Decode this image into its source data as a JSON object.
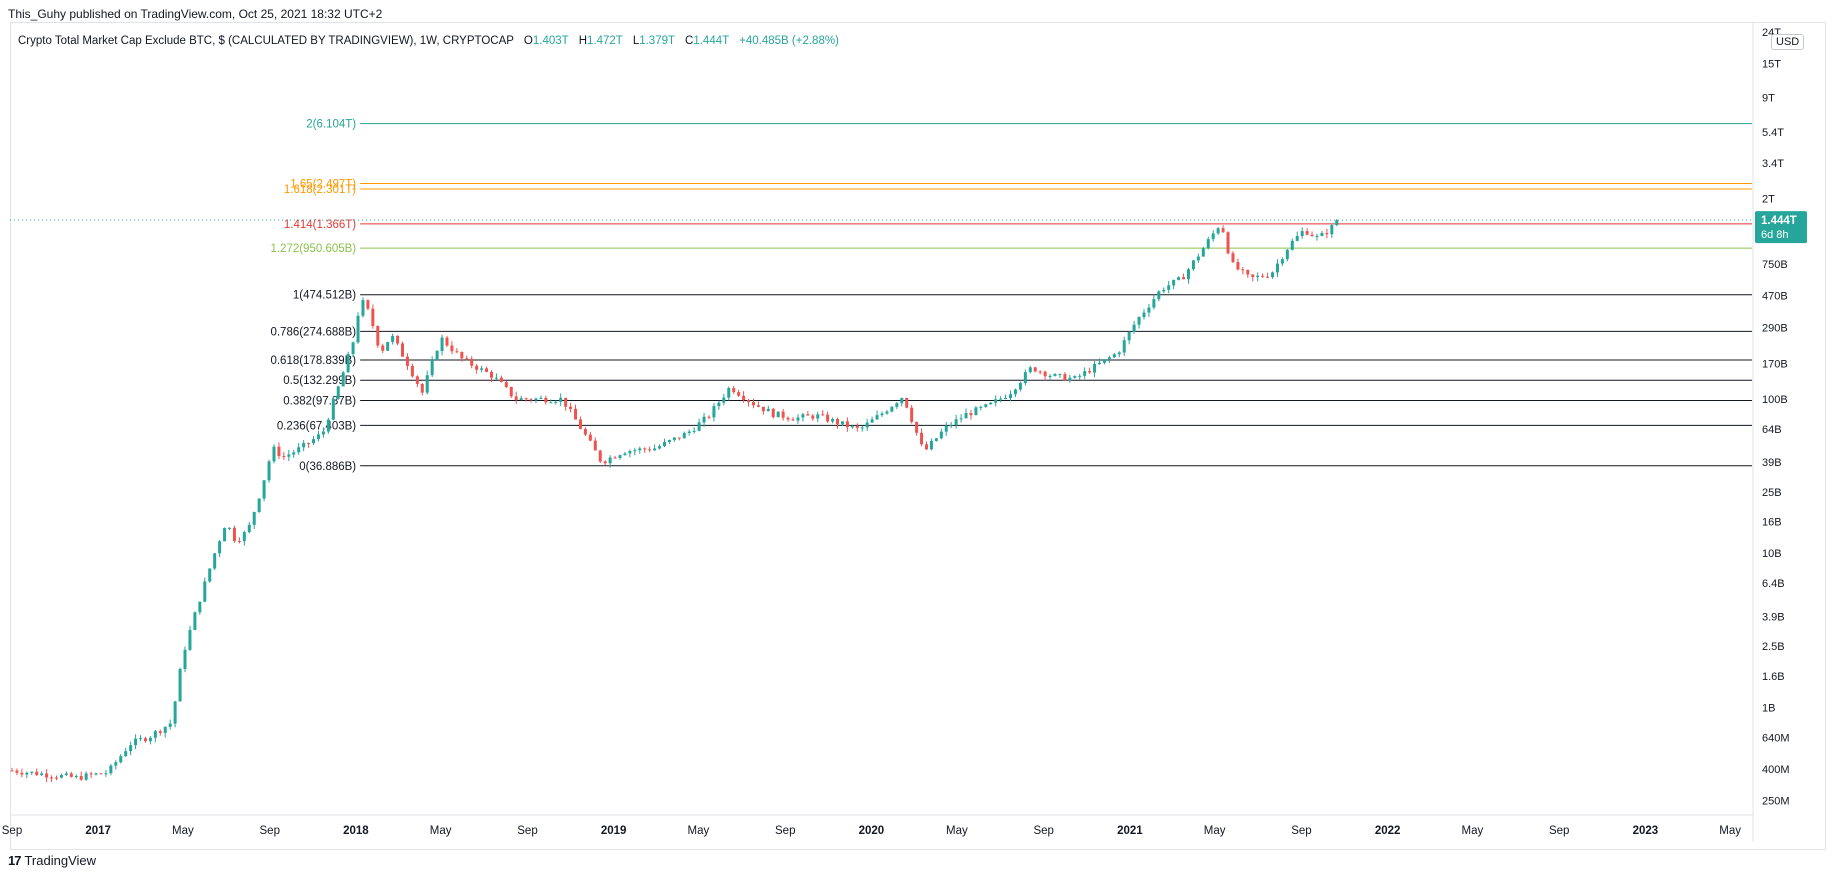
{
  "publisher_line": "This_Guhy published on TradingView.com, Oct 25, 2021 18:32 UTC+2",
  "legend": {
    "symbol": "Crypto Total Market Cap Exclude BTC, $ (CALCULATED BY TRADINGVIEW), 1W, CRYPTOCAP",
    "open_label": "O",
    "open": "1.403T",
    "high_label": "H",
    "high": "1.472T",
    "low_label": "L",
    "low": "1.379T",
    "close_label": "C",
    "close": "1.444T",
    "change": "+40.485B (+2.88%)"
  },
  "currency_button": "USD",
  "footer": {
    "logo": "17",
    "brand": "TradingView"
  },
  "colors": {
    "up": "#26a69a",
    "down": "#ef5350",
    "fib_black": "#131722",
    "fib_red": "#e53935",
    "fib_green": "#8bc34a",
    "fib_orange": "#ff9800",
    "fib_teal": "#26a69a",
    "price_tag": "#26a69a"
  },
  "chart_data": {
    "type": "candlestick",
    "scale": "log",
    "interval": "1W",
    "y_unit": "USD",
    "y_ticks": [
      "24T",
      "15T",
      "9T",
      "5.4T",
      "3.4T",
      "2T",
      "750B",
      "470B",
      "290B",
      "170B",
      "100B",
      "64B",
      "39B",
      "25B",
      "16B",
      "10B",
      "6.4B",
      "3.9B",
      "2.5B",
      "1.6B",
      "1B",
      "640M",
      "400M",
      "250M"
    ],
    "y_tick_values": [
      24000000000000.0,
      15000000000000.0,
      9000000000000.0,
      5400000000000.0,
      3400000000000.0,
      2000000000000.0,
      750000000000.0,
      470000000000.0,
      290000000000.0,
      170000000000.0,
      100000000000.0,
      64000000000.0,
      39000000000.0,
      25000000000.0,
      16000000000.0,
      10000000000.0,
      6400000000.0,
      3900000000.0,
      2500000000.0,
      1600000000.0,
      1000000000.0,
      640000000.0,
      400000000.0,
      250000000.0
    ],
    "y_range": [
      210000000,
      27000000000000
    ],
    "x_range": [
      "2016-09-01",
      "2023-06-01"
    ],
    "x_ticks": [
      {
        "label": "Sep",
        "date": "2016-09-01"
      },
      {
        "label": "2017",
        "date": "2017-01-01"
      },
      {
        "label": "May",
        "date": "2017-05-01"
      },
      {
        "label": "Sep",
        "date": "2017-09-01"
      },
      {
        "label": "2018",
        "date": "2018-01-01"
      },
      {
        "label": "May",
        "date": "2018-05-01"
      },
      {
        "label": "Sep",
        "date": "2018-09-01"
      },
      {
        "label": "2019",
        "date": "2019-01-01"
      },
      {
        "label": "May",
        "date": "2019-05-01"
      },
      {
        "label": "Sep",
        "date": "2019-09-01"
      },
      {
        "label": "2020",
        "date": "2020-01-01"
      },
      {
        "label": "May",
        "date": "2020-05-01"
      },
      {
        "label": "Sep",
        "date": "2020-09-01"
      },
      {
        "label": "2021",
        "date": "2021-01-01"
      },
      {
        "label": "May",
        "date": "2021-05-01"
      },
      {
        "label": "Sep",
        "date": "2021-09-01"
      },
      {
        "label": "2022",
        "date": "2022-01-01"
      },
      {
        "label": "May",
        "date": "2022-05-01"
      },
      {
        "label": "Sep",
        "date": "2022-09-01"
      },
      {
        "label": "2023",
        "date": "2023-01-01"
      },
      {
        "label": "May",
        "date": "2023-05-01"
      }
    ],
    "bold_x_labels": [
      "2017",
      "2018",
      "2019",
      "2020",
      "2021",
      "2022",
      "2023"
    ],
    "close_path": [
      [
        "2016-09-01",
        390000000.0
      ],
      [
        "2016-10-15",
        370000000.0
      ],
      [
        "2016-12-01",
        350000000.0
      ],
      [
        "2017-01-15",
        380000000.0
      ],
      [
        "2017-02-15",
        580000000.0
      ],
      [
        "2017-03-15",
        650000000.0
      ],
      [
        "2017-04-15",
        800000000.0
      ],
      [
        "2017-05-01",
        2200000000.0
      ],
      [
        "2017-05-20",
        4300000000.0
      ],
      [
        "2017-06-15",
        10000000000.0
      ],
      [
        "2017-07-01",
        16000000000.0
      ],
      [
        "2017-07-15",
        12000000000.0
      ],
      [
        "2017-08-01",
        14000000000.0
      ],
      [
        "2017-08-20",
        26000000000.0
      ],
      [
        "2017-09-05",
        48000000000.0
      ],
      [
        "2017-09-20",
        42000000000.0
      ],
      [
        "2017-10-15",
        48000000000.0
      ],
      [
        "2017-11-15",
        60000000000.0
      ],
      [
        "2017-12-10",
        130000000000.0
      ],
      [
        "2017-12-31",
        260000000000.0
      ],
      [
        "2018-01-07",
        450000000000.0
      ],
      [
        "2018-01-20",
        360000000000.0
      ],
      [
        "2018-02-05",
        200000000000.0
      ],
      [
        "2018-02-20",
        260000000000.0
      ],
      [
        "2018-03-15",
        170000000000.0
      ],
      [
        "2018-04-05",
        110000000000.0
      ],
      [
        "2018-05-01",
        250000000000.0
      ],
      [
        "2018-06-01",
        180000000000.0
      ],
      [
        "2018-07-15",
        140000000000.0
      ],
      [
        "2018-08-15",
        100000000000.0
      ],
      [
        "2018-09-20",
        100000000000.0
      ],
      [
        "2018-10-20",
        100000000000.0
      ],
      [
        "2018-11-20",
        60000000000.0
      ],
      [
        "2018-12-15",
        39000000000.0
      ],
      [
        "2019-01-15",
        46000000000.0
      ],
      [
        "2019-03-01",
        48000000000.0
      ],
      [
        "2019-04-15",
        60000000000.0
      ],
      [
        "2019-05-15",
        77000000000.0
      ],
      [
        "2019-06-15",
        120000000000.0
      ],
      [
        "2019-07-15",
        95000000000.0
      ],
      [
        "2019-08-15",
        80000000000.0
      ],
      [
        "2019-09-15",
        75000000000.0
      ],
      [
        "2019-10-15",
        78000000000.0
      ],
      [
        "2019-11-15",
        70000000000.0
      ],
      [
        "2019-12-15",
        63000000000.0
      ],
      [
        "2020-01-15",
        80000000000.0
      ],
      [
        "2020-02-15",
        105000000000.0
      ],
      [
        "2020-03-15",
        45000000000.0
      ],
      [
        "2020-04-15",
        65000000000.0
      ],
      [
        "2020-05-15",
        80000000000.0
      ],
      [
        "2020-06-15",
        90000000000.0
      ],
      [
        "2020-07-15",
        110000000000.0
      ],
      [
        "2020-08-15",
        160000000000.0
      ],
      [
        "2020-09-15",
        140000000000.0
      ],
      [
        "2020-10-15",
        135000000000.0
      ],
      [
        "2020-11-20",
        170000000000.0
      ],
      [
        "2020-12-15",
        200000000000.0
      ],
      [
        "2021-01-10",
        320000000000.0
      ],
      [
        "2021-02-15",
        520000000000.0
      ],
      [
        "2021-03-15",
        600000000000.0
      ],
      [
        "2021-04-15",
        950000000000.0
      ],
      [
        "2021-05-10",
        1400000000000.0
      ],
      [
        "2021-05-25",
        750000000000.0
      ],
      [
        "2021-06-20",
        600000000000.0
      ],
      [
        "2021-07-20",
        650000000000.0
      ],
      [
        "2021-08-15",
        1000000000000.0
      ],
      [
        "2021-09-05",
        1250000000000.0
      ],
      [
        "2021-09-25",
        1100000000000.0
      ],
      [
        "2021-10-10",
        1250000000000.0
      ],
      [
        "2021-10-25",
        1444000000000.0
      ]
    ]
  },
  "fib_levels": [
    {
      "label": "2(6.104T)",
      "value": 6104000000000.0,
      "color": "teal"
    },
    {
      "label": "1.65(2.497T)",
      "value": 2497000000000.0,
      "color": "orange"
    },
    {
      "label": "1.618(2.301T)",
      "value": 2301000000000.0,
      "color": "orange"
    },
    {
      "label": "1.414(1.366T)",
      "value": 1366000000000.0,
      "color": "red"
    },
    {
      "label": "1.272(950.605B)",
      "value": 950605000000.0,
      "color": "green"
    },
    {
      "label": "1(474.512B)",
      "value": 474512000000.0,
      "color": "black"
    },
    {
      "label": "0.786(274.688B)",
      "value": 274688000000.0,
      "color": "black"
    },
    {
      "label": "0.618(178.839B)",
      "value": 178839000000.0,
      "color": "black"
    },
    {
      "label": "0.5(132.299B)",
      "value": 132299000000.0,
      "color": "black"
    },
    {
      "label": "0.382(97.87B)",
      "value": 97870000000.0,
      "color": "black"
    },
    {
      "label": "0.236(67.403B)",
      "value": 67403000000.0,
      "color": "black"
    },
    {
      "label": "0(36.886B)",
      "value": 36886000000.0,
      "color": "black"
    }
  ],
  "fib_start_date": "2018-01-07",
  "price_tag": {
    "value_label": "1.444T",
    "countdown": "6d 8h",
    "value": 1444000000000.0
  }
}
